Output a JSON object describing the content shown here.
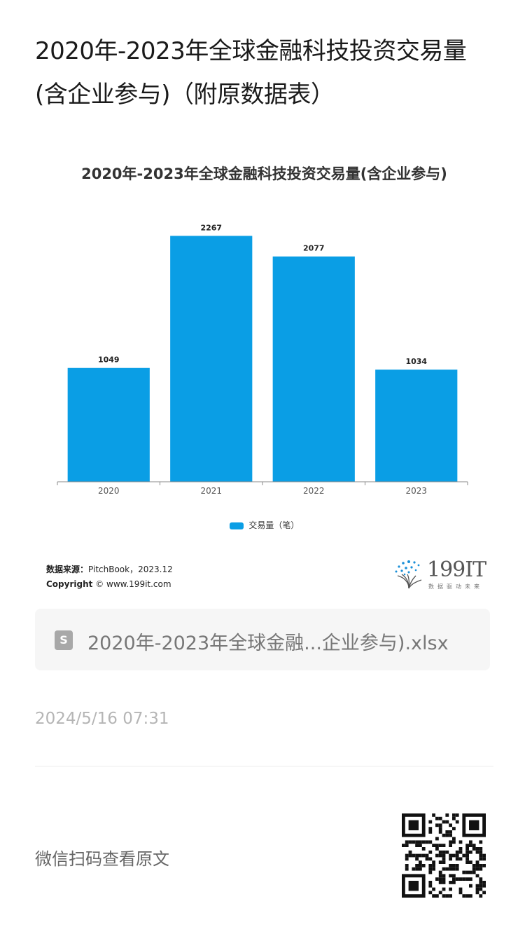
{
  "article": {
    "title": "2020年-2023年全球金融科技投资交易量(含企业参与)（附原数据表）"
  },
  "chart_data": {
    "type": "bar",
    "title": "2020年-2023年全球金融科技投资交易量(含企业参与)",
    "categories": [
      "2020",
      "2021",
      "2022",
      "2023"
    ],
    "series": [
      {
        "name": "交易量（笔）",
        "values": [
          1049,
          2267,
          2077,
          1034
        ],
        "color": "#0a9ee5"
      }
    ],
    "ylim": [
      0,
      2450
    ],
    "grid": false,
    "legend": "bottom-center",
    "show_data_labels": true
  },
  "source": {
    "label": "数据来源：",
    "text": "PitchBook，2023.12",
    "copyright_label": "Copyright",
    "copyright_text": "© www.199it.com"
  },
  "brand": {
    "name": "199IT",
    "tagline": "数据驱动未来"
  },
  "attachment": {
    "icon": "spreadsheet-file-icon",
    "icon_letter": "S",
    "filename": "2020年-2023年全球金融...企业参与).xlsx"
  },
  "meta": {
    "timestamp": "2024/5/16 07:31",
    "qr_hint": "微信扫码查看原文"
  }
}
